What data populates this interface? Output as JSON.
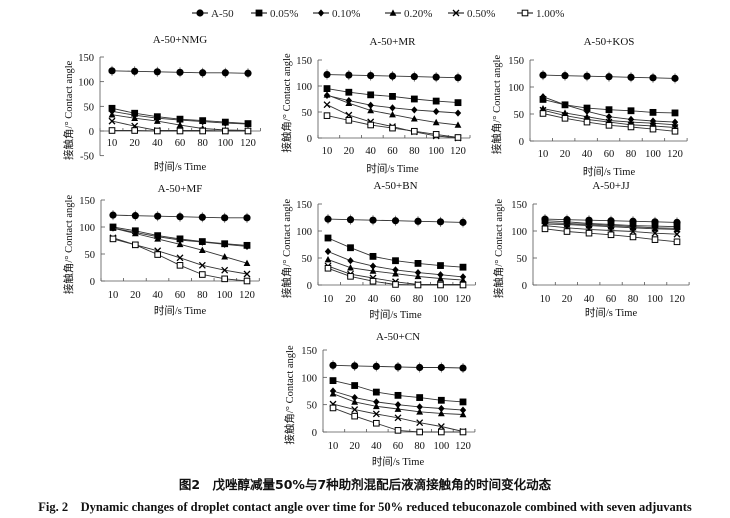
{
  "legend": [
    {
      "name": "A-50",
      "marker": "filled-circle"
    },
    {
      "name": "0.05%",
      "marker": "filled-square"
    },
    {
      "name": "0.10%",
      "marker": "filled-diamond"
    },
    {
      "name": "0.20%",
      "marker": "filled-triangle"
    },
    {
      "name": "0.50%",
      "marker": "cross"
    },
    {
      "name": "1.00%",
      "marker": "open-square"
    }
  ],
  "caption": {
    "cn": "图2　戊唑醇减量50%与7种助剂混配后液滴接触角的时间变化动态",
    "en": "Fig. 2　Dynamic changes of droplet contact angle over time for 50% reduced tebuconazole combined with seven adjuvants"
  },
  "chart_data": [
    {
      "type": "line",
      "title": "A-50+NMG",
      "xlabel": "时间/s Time",
      "ylabel": "接触角/° Contact angle",
      "categories": [
        "10",
        "20",
        "40",
        "60",
        "80",
        "100",
        "120"
      ],
      "ylim": [
        -50,
        150
      ],
      "yticks": [
        -50,
        0,
        50,
        100,
        150
      ],
      "series": [
        {
          "name": "A-50",
          "values": [
            122,
            121,
            120,
            119,
            118,
            118,
            117
          ]
        },
        {
          "name": "0.05%",
          "values": [
            46,
            36,
            29,
            24,
            21,
            18,
            15
          ]
        },
        {
          "name": "0.10%",
          "values": [
            40,
            32,
            26,
            22,
            19,
            16,
            14
          ]
        },
        {
          "name": "0.20%",
          "values": [
            33,
            26,
            20,
            12,
            5,
            2,
            1
          ]
        },
        {
          "name": "0.50%",
          "values": [
            20,
            10,
            1,
            1,
            1,
            0,
            0
          ]
        },
        {
          "name": "1.00%",
          "values": [
            1,
            1,
            0,
            0,
            0,
            0,
            0
          ]
        }
      ]
    },
    {
      "type": "line",
      "title": "A-50+MR",
      "xlabel": "时间/s Time",
      "ylabel": "接触角/° Contact angle",
      "categories": [
        "10",
        "20",
        "40",
        "60",
        "80",
        "100",
        "120"
      ],
      "ylim": [
        0,
        150
      ],
      "yticks": [
        0,
        50,
        100,
        150
      ],
      "series": [
        {
          "name": "A-50",
          "values": [
            122,
            121,
            120,
            119,
            118,
            117,
            116
          ]
        },
        {
          "name": "0.05%",
          "values": [
            95,
            88,
            83,
            80,
            75,
            71,
            68
          ]
        },
        {
          "name": "0.10%",
          "values": [
            82,
            72,
            63,
            58,
            54,
            51,
            48
          ]
        },
        {
          "name": "0.20%",
          "values": [
            83,
            67,
            53,
            45,
            37,
            30,
            25
          ]
        },
        {
          "name": "0.50%",
          "values": [
            64,
            44,
            31,
            22,
            12,
            4,
            0
          ]
        },
        {
          "name": "1.00%",
          "values": [
            43,
            34,
            25,
            19,
            13,
            7,
            1
          ]
        }
      ]
    },
    {
      "type": "line",
      "title": "A-50+KOS",
      "xlabel": "时间/s Time",
      "ylabel": "接触角/° Contact angle",
      "categories": [
        "10",
        "20",
        "40",
        "60",
        "80",
        "100",
        "120"
      ],
      "ylim": [
        0,
        150
      ],
      "yticks": [
        0,
        50,
        100,
        150
      ],
      "series": [
        {
          "name": "A-50",
          "values": [
            122,
            121,
            120,
            119,
            118,
            117,
            116
          ]
        },
        {
          "name": "0.05%",
          "values": [
            77,
            67,
            61,
            58,
            56,
            53,
            52
          ]
        },
        {
          "name": "0.10%",
          "values": [
            82,
            67,
            55,
            45,
            40,
            37,
            35
          ]
        },
        {
          "name": "0.20%",
          "values": [
            60,
            52,
            45,
            38,
            35,
            33,
            30
          ]
        },
        {
          "name": "0.50%",
          "values": [
            57,
            47,
            40,
            35,
            30,
            28,
            25
          ]
        },
        {
          "name": "1.00%",
          "values": [
            51,
            42,
            35,
            29,
            26,
            22,
            18
          ]
        }
      ]
    },
    {
      "type": "line",
      "title": "A-50+MF",
      "xlabel": "时间/s Time",
      "ylabel": "接触角/° Contact angle",
      "categories": [
        "10",
        "20",
        "40",
        "60",
        "80",
        "100",
        "120"
      ],
      "ylim": [
        0,
        150
      ],
      "yticks": [
        0,
        50,
        100,
        150
      ],
      "series": [
        {
          "name": "A-50",
          "values": [
            122,
            121,
            120,
            119,
            118,
            117,
            117
          ]
        },
        {
          "name": "0.05%",
          "values": [
            100,
            93,
            84,
            78,
            73,
            69,
            66
          ]
        },
        {
          "name": "0.10%",
          "values": [
            98,
            90,
            82,
            76,
            72,
            68,
            64
          ]
        },
        {
          "name": "0.20%",
          "values": [
            98,
            88,
            78,
            68,
            57,
            45,
            33
          ]
        },
        {
          "name": "0.50%",
          "values": [
            80,
            67,
            56,
            43,
            29,
            20,
            13
          ]
        },
        {
          "name": "1.00%",
          "values": [
            78,
            67,
            49,
            29,
            12,
            4,
            0
          ]
        }
      ]
    },
    {
      "type": "line",
      "title": "A-50+BN",
      "xlabel": "时间/s Time",
      "ylabel": "接触角/° Contact angle",
      "categories": [
        "10",
        "20",
        "40",
        "60",
        "80",
        "100",
        "120"
      ],
      "ylim": [
        0,
        150
      ],
      "yticks": [
        0,
        50,
        100,
        150
      ],
      "series": [
        {
          "name": "A-50",
          "values": [
            122,
            121,
            120,
            119,
            118,
            117,
            116
          ]
        },
        {
          "name": "0.05%",
          "values": [
            87,
            69,
            53,
            45,
            40,
            36,
            33
          ]
        },
        {
          "name": "0.10%",
          "values": [
            62,
            45,
            35,
            28,
            23,
            19,
            15
          ]
        },
        {
          "name": "0.20%",
          "values": [
            47,
            32,
            26,
            21,
            16,
            12,
            9
          ]
        },
        {
          "name": "0.50%",
          "values": [
            35,
            20,
            13,
            6,
            1,
            1,
            1
          ]
        },
        {
          "name": "1.00%",
          "values": [
            31,
            16,
            7,
            1,
            0,
            0,
            0
          ]
        }
      ]
    },
    {
      "type": "line",
      "title": "A-50+JJ",
      "xlabel": "时间/s Time",
      "ylabel": "接触角/° Contact angle",
      "categories": [
        "10",
        "20",
        "40",
        "60",
        "80",
        "100",
        "120"
      ],
      "ylim": [
        0,
        150
      ],
      "yticks": [
        0,
        50,
        100,
        150
      ],
      "series": [
        {
          "name": "A-50",
          "values": [
            122,
            121,
            120,
            119,
            118,
            117,
            116
          ]
        },
        {
          "name": "0.05%",
          "values": [
            119,
            117,
            114,
            112,
            110,
            109,
            108
          ]
        },
        {
          "name": "0.10%",
          "values": [
            116,
            114,
            112,
            110,
            108,
            106,
            105
          ]
        },
        {
          "name": "0.20%",
          "values": [
            113,
            112,
            110,
            108,
            106,
            104,
            103
          ]
        },
        {
          "name": "0.50%",
          "values": [
            110,
            106,
            103,
            101,
            99,
            96,
            94
          ]
        },
        {
          "name": "1.00%",
          "values": [
            104,
            99,
            96,
            93,
            89,
            84,
            80
          ]
        }
      ]
    },
    {
      "type": "line",
      "title": "A-50+CN",
      "xlabel": "时间/s Time",
      "ylabel": "接触角/° Contact angle",
      "categories": [
        "10",
        "20",
        "40",
        "60",
        "80",
        "100",
        "120"
      ],
      "ylim": [
        0,
        150
      ],
      "yticks": [
        0,
        50,
        100,
        150
      ],
      "series": [
        {
          "name": "A-50",
          "values": [
            122,
            121,
            120,
            119,
            118,
            118,
            117
          ]
        },
        {
          "name": "0.05%",
          "values": [
            94,
            85,
            73,
            67,
            63,
            58,
            55
          ]
        },
        {
          "name": "0.10%",
          "values": [
            75,
            63,
            55,
            50,
            46,
            43,
            40
          ]
        },
        {
          "name": "0.20%",
          "values": [
            70,
            55,
            47,
            42,
            37,
            34,
            32
          ]
        },
        {
          "name": "0.50%",
          "values": [
            51,
            41,
            33,
            26,
            17,
            10,
            1
          ]
        },
        {
          "name": "1.00%",
          "values": [
            44,
            29,
            16,
            3,
            0,
            0,
            0
          ]
        }
      ]
    }
  ]
}
